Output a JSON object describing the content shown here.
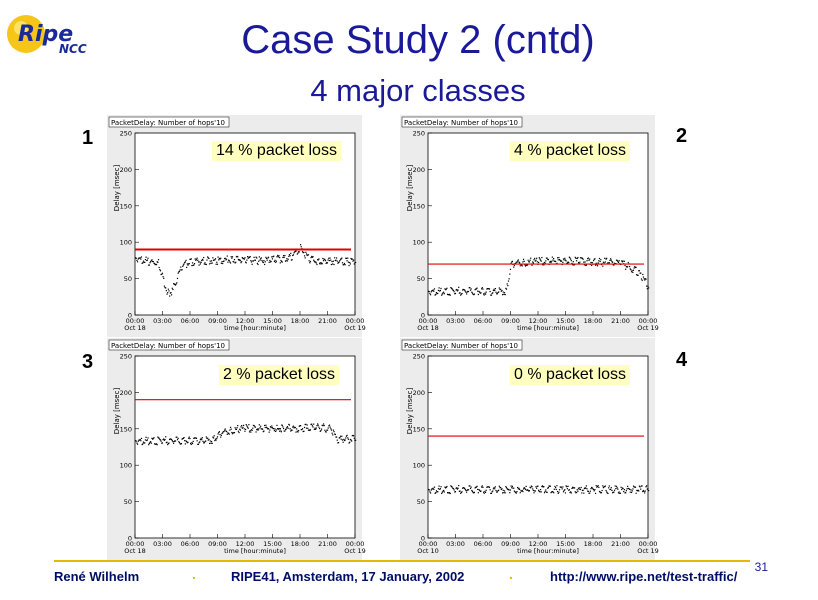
{
  "header": {
    "title": "Case Study 2 (cntd)",
    "subtitle": "4 major classes",
    "logo_text_main": "Ripe",
    "logo_text_sub": "NCC"
  },
  "footer": {
    "author": "René  Wilhelm",
    "event": "RIPE41, Amsterdam, 17 January, 2002",
    "url": "http://www.ripe.net/test-traffic/",
    "page": "31",
    "separator": "."
  },
  "chart_data": [
    {
      "type": "scatter",
      "number": "1",
      "title": "PacketDelay: Number of hops'10",
      "annotation": "14 % packet loss",
      "ylabel": "Delay [msec]",
      "xlabel": "time [hour:minute]",
      "ylim": [
        0,
        250
      ],
      "y_ticks": [
        "0",
        "50",
        "100",
        "150",
        "200",
        "250"
      ],
      "x_ticks": [
        "00:00",
        "03:00",
        "06:00",
        "09:00",
        "12:00",
        "15:00",
        "18:00",
        "21:00",
        "00:00"
      ],
      "x_start_label": "Oct 18",
      "x_end_label": "Oct 19",
      "reference_line": 90,
      "series": [
        {
          "x": [
            0,
            1.5,
            2.5,
            3.0,
            3.5,
            4.0,
            5.0,
            6.0,
            7.5,
            9.0,
            10.5,
            12.0,
            13.5,
            15.0,
            16.0,
            17.0,
            18.0,
            19.0,
            20.0,
            21.0,
            22.0,
            23.0,
            24.0
          ],
          "y": [
            78,
            73,
            70,
            50,
            30,
            32,
            66,
            72,
            74,
            74,
            76,
            75,
            74,
            75,
            77,
            80,
            92,
            75,
            74,
            73,
            74,
            72,
            73
          ]
        }
      ]
    },
    {
      "type": "scatter",
      "number": "2",
      "title": "PacketDelay: Number of hops'10",
      "annotation": "4 % packet loss",
      "ylabel": "Delay [msec]",
      "xlabel": "time [hour:minute]",
      "ylim": [
        0,
        250
      ],
      "y_ticks": [
        "0",
        "50",
        "100",
        "150",
        "200",
        "250"
      ],
      "x_ticks": [
        "00:00",
        "03:00",
        "06:00",
        "09:00",
        "12:00",
        "15:00",
        "18:00",
        "21:00",
        "00:00"
      ],
      "x_start_label": "Oct 18",
      "x_end_label": "Oct 19",
      "reference_line": 70,
      "series": [
        {
          "x": [
            0,
            3.0,
            6.0,
            8.5,
            9.0,
            10.5,
            12.0,
            13.5,
            15.0,
            16.5,
            18.0,
            19.5,
            21.0,
            22.0,
            22.7,
            23.3,
            24.0
          ],
          "y": [
            32,
            32,
            32,
            32,
            70,
            72,
            73,
            74,
            74,
            73,
            72,
            72,
            70,
            65,
            60,
            52,
            38
          ]
        }
      ]
    },
    {
      "type": "scatter",
      "number": "3",
      "title": "PacketDelay: Number of hops'10",
      "annotation": "2 % packet loss",
      "ylabel": "Delay [msec]",
      "xlabel": "time [hour:minute]",
      "ylim": [
        0,
        250
      ],
      "y_ticks": [
        "0",
        "50",
        "100",
        "150",
        "200",
        "250"
      ],
      "x_ticks": [
        "00:00",
        "03:00",
        "06:00",
        "09:00",
        "12:00",
        "15:00",
        "18:00",
        "21:00",
        "00:00"
      ],
      "x_start_label": "Oct 18",
      "x_end_label": "Oct 19",
      "reference_line": 190,
      "series": [
        {
          "x": [
            0,
            3.0,
            6.0,
            8.5,
            9.0,
            10.5,
            12.0,
            13.5,
            15.0,
            15.7,
            16.0,
            18.0,
            20.0,
            21.3,
            22.0,
            24.0
          ],
          "y": [
            133,
            133,
            133,
            134,
            142,
            148,
            150,
            150,
            150,
            148,
            150,
            150,
            151,
            150,
            135,
            135
          ]
        }
      ]
    },
    {
      "type": "scatter",
      "number": "4",
      "title": "PacketDelay: Number of hops'10",
      "annotation": "0 % packet loss",
      "ylabel": "Delay [msec]",
      "xlabel": "time [hour:minute]",
      "ylim": [
        0,
        250
      ],
      "y_ticks": [
        "0",
        "50",
        "100",
        "150",
        "200",
        "250"
      ],
      "x_ticks": [
        "00:00",
        "03:00",
        "06:00",
        "09:00",
        "12:00",
        "15:00",
        "18:00",
        "21:00",
        "00:00"
      ],
      "x_start_label": "Oct 10",
      "x_end_label": "Oct 19",
      "reference_line": 140,
      "series": [
        {
          "x": [
            0,
            3.0,
            6.0,
            9.0,
            12.0,
            15.0,
            18.0,
            21.0,
            24.0
          ],
          "y": [
            66,
            66,
            66,
            66,
            66,
            66,
            66,
            66,
            66
          ]
        }
      ]
    }
  ]
}
